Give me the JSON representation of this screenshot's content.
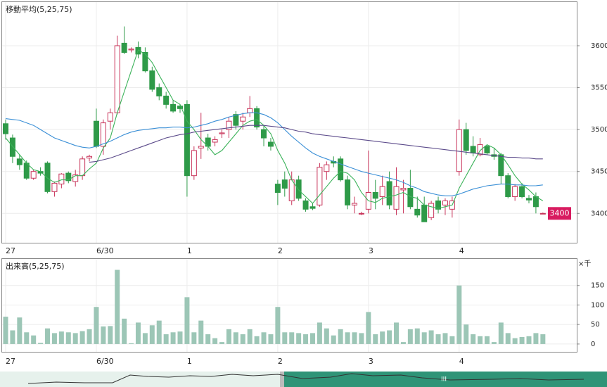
{
  "chart_data": [
    {
      "type": "candlestick",
      "title": "移動平均(5,25,75)",
      "categories": [
        "27",
        null,
        null,
        null,
        null,
        null,
        null,
        null,
        null,
        null,
        null,
        null,
        null,
        "6/30",
        null,
        null,
        null,
        null,
        null,
        null,
        null,
        null,
        null,
        null,
        null,
        null,
        "1",
        null,
        null,
        null,
        null,
        null,
        null,
        null,
        null,
        null,
        null,
        null,
        null,
        "2",
        null,
        null,
        null,
        null,
        null,
        null,
        null,
        null,
        null,
        null,
        null,
        null,
        "3",
        null,
        null,
        null,
        null,
        null,
        null,
        null,
        null,
        null,
        null,
        null,
        null,
        "4",
        null,
        null,
        null,
        null,
        null,
        null,
        null,
        null,
        null,
        null,
        null,
        null
      ],
      "open": [
        3507,
        3490,
        3465,
        3460,
        3442,
        3450,
        3460,
        3426,
        3435,
        3448,
        3438,
        3445,
        3466,
        3510,
        3480,
        3510,
        3520,
        3603,
        3595,
        3598,
        3592,
        3570,
        3550,
        3540,
        3530,
        3528,
        3530,
        3445,
        3478,
        3490,
        3485,
        3495,
        3500,
        3518,
        3510,
        3520,
        3525,
        3500,
        3485,
        3435,
        3440,
        3415,
        3440,
        3415,
        3408,
        3410,
        3450,
        3462,
        3465,
        3440,
        3410,
        3400,
        3405,
        3425,
        3420,
        3438,
        3405,
        3428,
        3430,
        3405,
        3410,
        3395,
        3415,
        3410,
        3405,
        3450,
        3500,
        3480,
        3470,
        3480,
        3470,
        3470,
        3445,
        3420,
        3432,
        3418,
        3420,
        3400
      ],
      "high": [
        3512,
        3494,
        3470,
        3463,
        3452,
        3455,
        3462,
        3438,
        3448,
        3450,
        3452,
        3468,
        3470,
        3525,
        3512,
        3525,
        3612,
        3623,
        3598,
        3605,
        3598,
        3575,
        3555,
        3545,
        3535,
        3530,
        3535,
        3480,
        3520,
        3495,
        3492,
        3500,
        3515,
        3522,
        3520,
        3540,
        3528,
        3505,
        3490,
        3440,
        3450,
        3450,
        3445,
        3418,
        3412,
        3460,
        3462,
        3468,
        3468,
        3445,
        3420,
        3402,
        3475,
        3440,
        3445,
        3450,
        3455,
        3440,
        3452,
        3420,
        3420,
        3415,
        3420,
        3418,
        3420,
        3512,
        3508,
        3492,
        3490,
        3482,
        3478,
        3472,
        3448,
        3435,
        3436,
        3422,
        3425,
        3401
      ],
      "low": [
        3488,
        3460,
        3452,
        3440,
        3440,
        3445,
        3424,
        3420,
        3430,
        3436,
        3432,
        3440,
        3462,
        3478,
        3470,
        3500,
        3518,
        3590,
        3592,
        3585,
        3568,
        3545,
        3535,
        3525,
        3520,
        3520,
        3420,
        3440,
        3465,
        3475,
        3480,
        3490,
        3490,
        3500,
        3500,
        3515,
        3500,
        3480,
        3475,
        3410,
        3420,
        3410,
        3415,
        3402,
        3404,
        3408,
        3440,
        3455,
        3438,
        3405,
        3400,
        3398,
        3400,
        3405,
        3410,
        3405,
        3398,
        3400,
        3405,
        3395,
        3390,
        3392,
        3400,
        3398,
        3395,
        3445,
        3470,
        3468,
        3468,
        3470,
        3464,
        3435,
        3418,
        3415,
        3418,
        3412,
        3400,
        3399
      ],
      "close": [
        3495,
        3468,
        3458,
        3442,
        3450,
        3448,
        3426,
        3436,
        3447,
        3439,
        3446,
        3465,
        3468,
        3480,
        3508,
        3520,
        3600,
        3592,
        3596,
        3590,
        3570,
        3548,
        3540,
        3530,
        3522,
        3525,
        3445,
        3475,
        3480,
        3480,
        3488,
        3496,
        3510,
        3505,
        3515,
        3525,
        3503,
        3490,
        3480,
        3425,
        3430,
        3440,
        3418,
        3405,
        3406,
        3455,
        3458,
        3460,
        3440,
        3410,
        3412,
        3400,
        3425,
        3418,
        3432,
        3410,
        3432,
        3430,
        3408,
        3398,
        3390,
        3412,
        3405,
        3415,
        3415,
        3500,
        3475,
        3472,
        3482,
        3472,
        3468,
        3445,
        3420,
        3432,
        3420,
        3416,
        3408,
        3400
      ],
      "up_color": "#c8345a",
      "down_color": "#2e9a48",
      "series": [
        {
          "name": "5",
          "color": "#3cb35a",
          "values": [
            3490,
            3480,
            3470,
            3460,
            3452,
            3450,
            3442,
            3437,
            3440,
            3440,
            3445,
            3445,
            3453,
            3460,
            3478,
            3490,
            3520,
            3545,
            3570,
            3595,
            3590,
            3580,
            3565,
            3550,
            3535,
            3530,
            3510,
            3500,
            3488,
            3480,
            3470,
            3475,
            3485,
            3495,
            3505,
            3510,
            3512,
            3505,
            3495,
            3475,
            3460,
            3440,
            3428,
            3420,
            3412,
            3422,
            3432,
            3442,
            3450,
            3448,
            3440,
            3425,
            3415,
            3413,
            3418,
            3420,
            3422,
            3425,
            3420,
            3418,
            3410,
            3408,
            3406,
            3408,
            3410,
            3430,
            3445,
            3460,
            3475,
            3482,
            3478,
            3470,
            3458,
            3445,
            3435,
            3428,
            3420,
            3415
          ]
        },
        {
          "name": "25",
          "color": "#3a8fd6",
          "values": [
            3513,
            3512,
            3511,
            3508,
            3505,
            3500,
            3495,
            3490,
            3487,
            3484,
            3481,
            3479,
            3478,
            3480,
            3483,
            3486,
            3490,
            3494,
            3497,
            3499,
            3500,
            3501,
            3502,
            3502,
            3503,
            3503,
            3502,
            3503,
            3505,
            3507,
            3510,
            3512,
            3515,
            3517,
            3519,
            3520,
            3520,
            3518,
            3514,
            3508,
            3500,
            3492,
            3485,
            3478,
            3472,
            3468,
            3465,
            3462,
            3459,
            3456,
            3453,
            3450,
            3448,
            3446,
            3444,
            3442,
            3440,
            3437,
            3433,
            3430,
            3426,
            3424,
            3422,
            3421,
            3421,
            3423,
            3426,
            3429,
            3431,
            3433,
            3434,
            3435,
            3435,
            3434,
            3434,
            3433,
            3433,
            3434
          ]
        },
        {
          "name": "75",
          "color": "#5b4a8a",
          "values": [
            null,
            null,
            null,
            null,
            null,
            null,
            null,
            null,
            null,
            null,
            null,
            null,
            3461,
            3462,
            3464,
            3466,
            3469,
            3472,
            3475,
            3478,
            3481,
            3484,
            3487,
            3490,
            3492,
            3494,
            3495,
            3497,
            3498,
            3499,
            3500,
            3501,
            3502,
            3503,
            3504,
            3505,
            3505,
            3505,
            3504,
            3503,
            3502,
            3500,
            3498,
            3497,
            3495,
            3494,
            3493,
            3492,
            3491,
            3490,
            3489,
            3488,
            3487,
            3486,
            3485,
            3484,
            3483,
            3482,
            3481,
            3480,
            3479,
            3478,
            3477,
            3476,
            3475,
            3474,
            3473,
            3472,
            3471,
            3470,
            3469,
            3468,
            3467,
            3467,
            3466,
            3466,
            3465,
            3465
          ]
        }
      ],
      "ylim": [
        3365,
        3652
      ],
      "yticks": [
        3400,
        3450,
        3500,
        3550,
        3600
      ],
      "grid": true,
      "last_price": 3400,
      "last_price_color": "#d81b60"
    },
    {
      "type": "bar",
      "title": "出来高(5,25,75)",
      "unit": "×千",
      "categories": [
        "27",
        null,
        null,
        null,
        null,
        null,
        null,
        null,
        null,
        null,
        null,
        null,
        null,
        "6/30",
        null,
        null,
        null,
        null,
        null,
        null,
        null,
        null,
        null,
        null,
        null,
        null,
        "1",
        null,
        null,
        null,
        null,
        null,
        null,
        null,
        null,
        null,
        null,
        null,
        null,
        "2",
        null,
        null,
        null,
        null,
        null,
        null,
        null,
        null,
        null,
        null,
        null,
        null,
        "3",
        null,
        null,
        null,
        null,
        null,
        null,
        null,
        null,
        null,
        null,
        null,
        null,
        "4",
        null,
        null,
        null,
        null,
        null,
        null,
        null,
        null,
        null,
        null,
        null,
        null
      ],
      "values": [
        70,
        35,
        68,
        30,
        22,
        3,
        40,
        28,
        32,
        30,
        28,
        33,
        38,
        95,
        45,
        46,
        190,
        65,
        2,
        55,
        28,
        48,
        60,
        25,
        30,
        32,
        120,
        30,
        60,
        25,
        15,
        5,
        38,
        30,
        25,
        38,
        20,
        30,
        25,
        95,
        30,
        30,
        28,
        25,
        28,
        55,
        40,
        22,
        38,
        30,
        30,
        28,
        82,
        25,
        32,
        35,
        55,
        5,
        38,
        40,
        30,
        35,
        25,
        28,
        20,
        150,
        50,
        25,
        20,
        20,
        5,
        55,
        28,
        15,
        18,
        20,
        28,
        25
      ],
      "color": "#9cc6b6",
      "ylim": [
        -20,
        218
      ],
      "yticks": [
        0,
        50,
        100,
        150
      ],
      "grid": true
    }
  ]
}
